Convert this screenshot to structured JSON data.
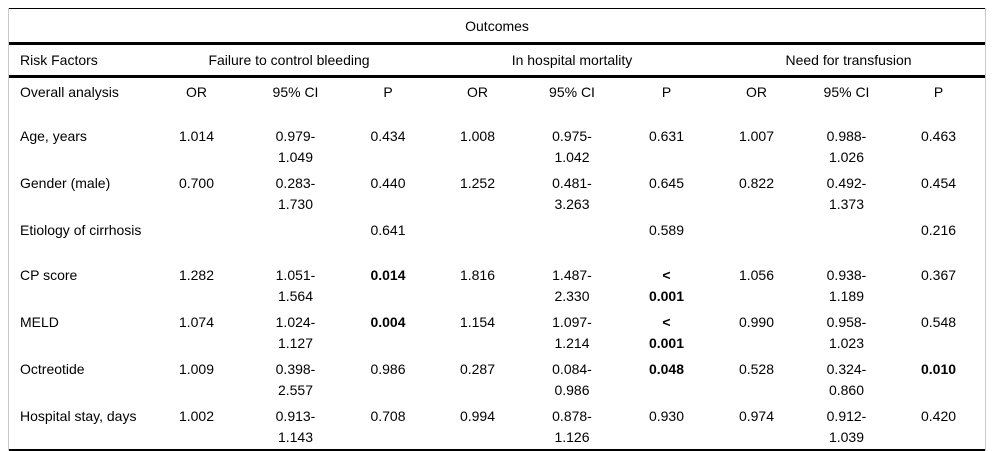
{
  "table": {
    "title": "Outcomes",
    "risk_factors_label": "Risk Factors",
    "group_headers": [
      "Failure to control bleeding",
      "In hospital mortality",
      "Need for transfusion"
    ],
    "rows": [
      {
        "label": "Overall analysis",
        "cells": [
          {
            "text": "OR"
          },
          {
            "text": "95% CI"
          },
          {
            "text": "P"
          },
          {
            "text": "OR"
          },
          {
            "text": "95% CI"
          },
          {
            "text": "P"
          },
          {
            "text": "OR"
          },
          {
            "text": "95% CI"
          },
          {
            "text": "P"
          }
        ]
      },
      {
        "label": "Age, years",
        "cells": [
          {
            "text": "1.014"
          },
          {
            "text": "0.979-\n1.049"
          },
          {
            "text": "0.434"
          },
          {
            "text": "1.008"
          },
          {
            "text": "0.975-\n1.042"
          },
          {
            "text": "0.631"
          },
          {
            "text": "1.007"
          },
          {
            "text": "0.988-\n1.026"
          },
          {
            "text": "0.463"
          }
        ]
      },
      {
        "label": "Gender (male)",
        "cells": [
          {
            "text": "0.700"
          },
          {
            "text": "0.283-\n1.730"
          },
          {
            "text": "0.440"
          },
          {
            "text": "1.252"
          },
          {
            "text": "0.481-\n3.263"
          },
          {
            "text": "0.645"
          },
          {
            "text": "0.822"
          },
          {
            "text": "0.492-\n1.373"
          },
          {
            "text": "0.454"
          }
        ]
      },
      {
        "label": "Etiology of cirrhosis",
        "cells": [
          {
            "text": ""
          },
          {
            "text": ""
          },
          {
            "text": "0.641"
          },
          {
            "text": ""
          },
          {
            "text": ""
          },
          {
            "text": "0.589"
          },
          {
            "text": ""
          },
          {
            "text": ""
          },
          {
            "text": "0.216"
          }
        ]
      },
      {
        "label": "CP score",
        "cells": [
          {
            "text": "1.282"
          },
          {
            "text": "1.051-\n1.564"
          },
          {
            "text": "0.014",
            "bold": true
          },
          {
            "text": "1.816"
          },
          {
            "text": "1.487-\n2.330"
          },
          {
            "text": "<\n0.001",
            "bold": true
          },
          {
            "text": "1.056"
          },
          {
            "text": "0.938-\n1.189"
          },
          {
            "text": "0.367"
          }
        ]
      },
      {
        "label": "MELD",
        "cells": [
          {
            "text": "1.074"
          },
          {
            "text": "1.024-\n1.127"
          },
          {
            "text": "0.004",
            "bold": true
          },
          {
            "text": "1.154"
          },
          {
            "text": "1.097-\n1.214"
          },
          {
            "text": "<\n0.001",
            "bold": true
          },
          {
            "text": "0.990"
          },
          {
            "text": "0.958-\n1.023"
          },
          {
            "text": "0.548"
          }
        ]
      },
      {
        "label": "Octreotide",
        "cells": [
          {
            "text": "1.009"
          },
          {
            "text": "0.398-\n2.557"
          },
          {
            "text": "0.986"
          },
          {
            "text": "0.287"
          },
          {
            "text": "0.084-\n0.986"
          },
          {
            "text": "0.048",
            "bold": true
          },
          {
            "text": "0.528"
          },
          {
            "text": "0.324-\n0.860"
          },
          {
            "text": "0.010",
            "bold": true
          }
        ]
      },
      {
        "label": "Hospital stay, days",
        "cells": [
          {
            "text": "1.002"
          },
          {
            "text": "0.913-\n1.143"
          },
          {
            "text": "0.708"
          },
          {
            "text": "0.994"
          },
          {
            "text": "0.878-\n1.126"
          },
          {
            "text": "0.930"
          },
          {
            "text": "0.974"
          },
          {
            "text": "0.912-\n1.039"
          },
          {
            "text": "0.420"
          }
        ]
      }
    ]
  }
}
